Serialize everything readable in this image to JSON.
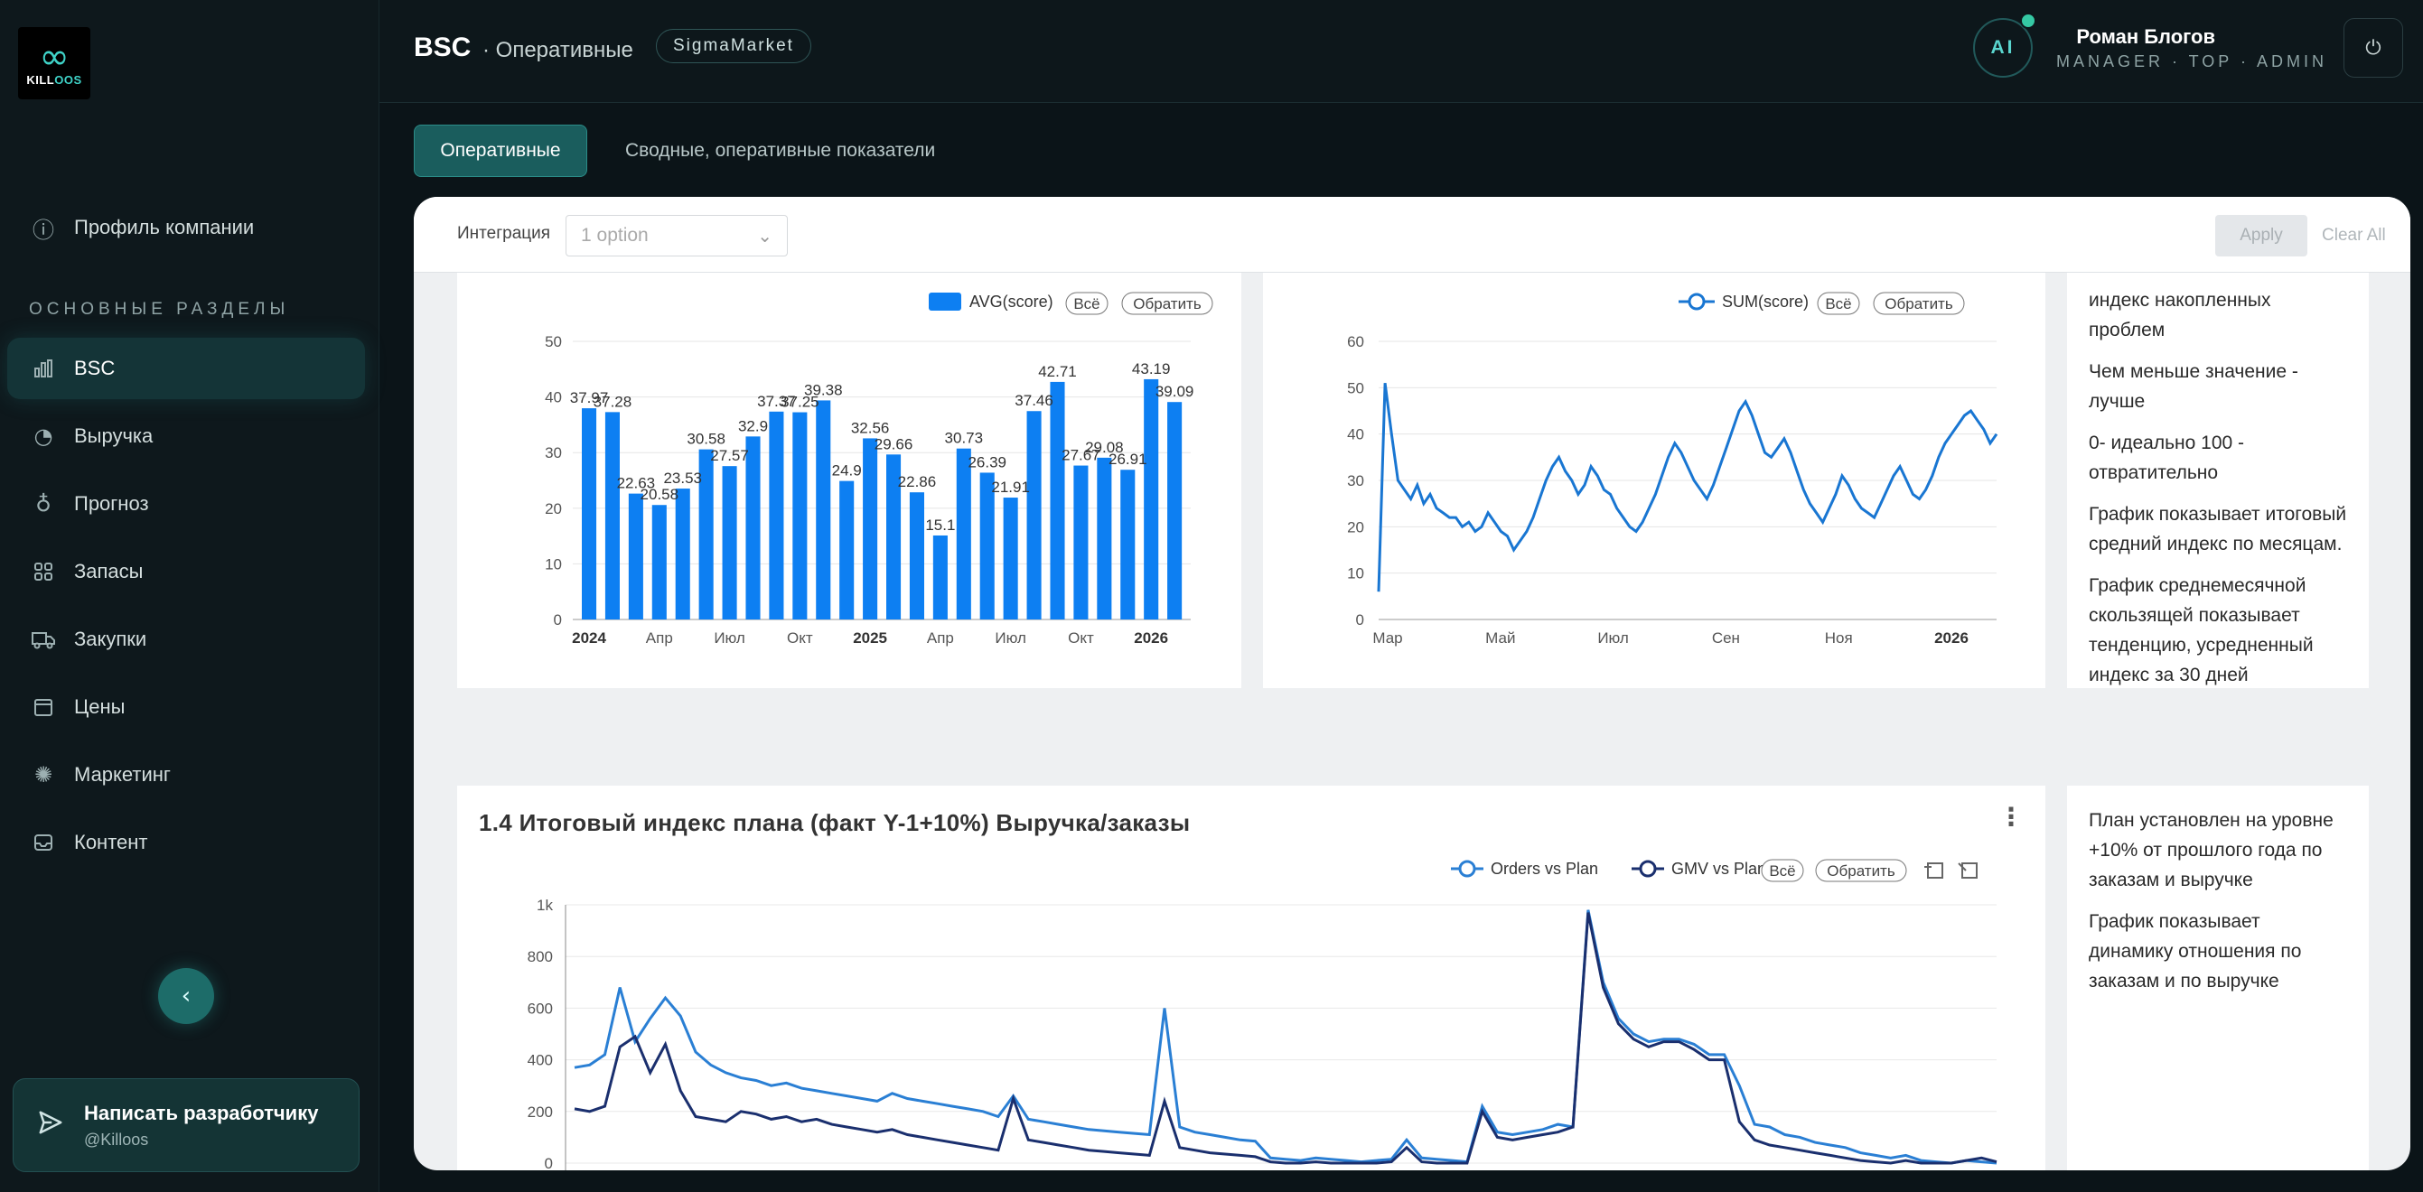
{
  "sidebar": {
    "logo_text_a": "KILL",
    "logo_text_b": "OOS",
    "profile": "Профиль компании",
    "section_title": "ОСНОВНЫЕ РАЗДЕЛЫ",
    "items": [
      {
        "label": "BSC",
        "icon": "bar-chart-icon"
      },
      {
        "label": "Выручка",
        "icon": "pie-chart-icon"
      },
      {
        "label": "Прогноз",
        "icon": "bulb-icon"
      },
      {
        "label": "Запасы",
        "icon": "grid-icon"
      },
      {
        "label": "Закупки",
        "icon": "truck-icon"
      },
      {
        "label": "Цены",
        "icon": "price-icon"
      },
      {
        "label": "Маркетинг",
        "icon": "spark-icon"
      },
      {
        "label": "Контент",
        "icon": "inbox-icon"
      }
    ],
    "dev_title": "Написать разработчику",
    "dev_handle": "@Killoos"
  },
  "header": {
    "title": "BSC",
    "subtitle": "· Оперативные",
    "badge": "SigmaMarket",
    "ai_label": "AI",
    "user_name": "Роман Блогов",
    "user_role": "MANAGER · TOP · ADMIN"
  },
  "tabs": [
    {
      "label": "Оперативные",
      "active": true
    },
    {
      "label": "Сводные, оперативные показатели",
      "active": false
    }
  ],
  "filters": {
    "integration_label": "Интеграция",
    "integration_placeholder": "1 option",
    "apply": "Apply",
    "clear": "Clear All"
  },
  "chart_controls": {
    "all": "Всё",
    "invert": "Обратить"
  },
  "notes": {
    "top": [
      "индекс накопленных проблем",
      "Чем меньше значение - лучше",
      "0- идеально 100 - отвратительно",
      "График показывает итоговый средний индекс по месяцам.",
      "График среднемесячной скользящей показывает тенденцию, усредненный индекс за 30 дней"
    ],
    "bottom": [
      "План установлен на уровне +10% от прошлого года по заказам и выручке",
      "График показывает динамику отношения по заказам и по выручке"
    ]
  },
  "chart_data": [
    {
      "type": "bar",
      "series": [
        {
          "name": "AVG(score)",
          "values": [
            37.97,
            37.28,
            22.63,
            20.58,
            23.53,
            30.58,
            27.57,
            32.9,
            37.37,
            37.25,
            39.38,
            24.9,
            32.56,
            29.66,
            22.86,
            15.1,
            30.73,
            26.39,
            21.91,
            37.46,
            42.71,
            27.67,
            29.08,
            26.91,
            43.19,
            39.09
          ]
        }
      ],
      "x_tick_labels": [
        "2024",
        "Апр",
        "Июл",
        "Окт",
        "2025",
        "Апр",
        "Июл",
        "Окт",
        "2026"
      ],
      "ylim": [
        0,
        50
      ],
      "y_ticks": [
        0,
        10,
        20,
        30,
        40,
        50
      ],
      "color": "#0d7ff2"
    },
    {
      "type": "line",
      "series": [
        {
          "name": "SUM(score)",
          "values": [
            6,
            51,
            40,
            30,
            28,
            26,
            29,
            25,
            27,
            24,
            23,
            22,
            22,
            20,
            21,
            19,
            20,
            23,
            21,
            19,
            18,
            15,
            17,
            19,
            22,
            26,
            30,
            33,
            35,
            32,
            30,
            27,
            29,
            33,
            31,
            28,
            27,
            24,
            22,
            20,
            19,
            21,
            24,
            27,
            31,
            35,
            38,
            36,
            33,
            30,
            28,
            26,
            29,
            33,
            37,
            41,
            45,
            47,
            44,
            40,
            36,
            35,
            37,
            39,
            36,
            32,
            28,
            25,
            23,
            21,
            24,
            27,
            31,
            29,
            26,
            24,
            23,
            22,
            25,
            28,
            31,
            33,
            30,
            27,
            26,
            28,
            31,
            35,
            38,
            40,
            42,
            44,
            45,
            43,
            41,
            38,
            40
          ]
        }
      ],
      "x_tick_labels": [
        "Мар",
        "Май",
        "Июл",
        "Сен",
        "Ноя",
        "2026"
      ],
      "ylim": [
        0,
        60
      ],
      "y_ticks": [
        0,
        10,
        20,
        30,
        40,
        50,
        60
      ],
      "color": "#1976d2"
    },
    {
      "type": "line",
      "title": "1.4 Итоговый индекс плана (факт Y-1+10%) Выручка/заказы",
      "series": [
        {
          "name": "Orders vs Plan",
          "color": "#2a7fd4",
          "values": [
            370,
            380,
            420,
            680,
            470,
            560,
            640,
            570,
            430,
            380,
            350,
            330,
            320,
            300,
            310,
            290,
            280,
            270,
            260,
            250,
            240,
            270,
            250,
            240,
            230,
            220,
            210,
            200,
            180,
            260,
            170,
            160,
            150,
            140,
            130,
            125,
            120,
            115,
            110,
            600,
            140,
            120,
            110,
            100,
            90,
            85,
            20,
            15,
            10,
            20,
            15,
            10,
            5,
            10,
            15,
            90,
            20,
            15,
            10,
            5,
            220,
            120,
            110,
            120,
            130,
            150,
            140,
            980,
            700,
            560,
            500,
            470,
            480,
            480,
            460,
            420,
            420,
            300,
            150,
            140,
            110,
            100,
            80,
            70,
            60,
            40,
            30,
            20,
            30,
            10,
            5,
            0,
            10,
            5,
            0
          ]
        },
        {
          "name": "GMV vs Plan",
          "color": "#1a2f6e",
          "values": [
            210,
            200,
            220,
            450,
            490,
            350,
            460,
            280,
            180,
            170,
            160,
            200,
            190,
            170,
            180,
            160,
            170,
            150,
            140,
            130,
            120,
            130,
            110,
            100,
            90,
            80,
            70,
            60,
            50,
            250,
            90,
            80,
            70,
            60,
            50,
            45,
            40,
            35,
            30,
            240,
            60,
            50,
            40,
            35,
            30,
            25,
            5,
            0,
            0,
            5,
            0,
            0,
            0,
            0,
            5,
            60,
            5,
            0,
            0,
            0,
            200,
            100,
            90,
            100,
            110,
            120,
            140,
            970,
            680,
            540,
            480,
            450,
            470,
            470,
            440,
            400,
            400,
            160,
            90,
            70,
            60,
            50,
            40,
            30,
            20,
            10,
            5,
            0,
            10,
            0,
            0,
            0,
            10,
            20,
            5
          ]
        }
      ],
      "ylim": [
        0,
        1000
      ],
      "y_ticks": [
        "0",
        "200",
        "400",
        "600",
        "800",
        "1k"
      ]
    }
  ]
}
